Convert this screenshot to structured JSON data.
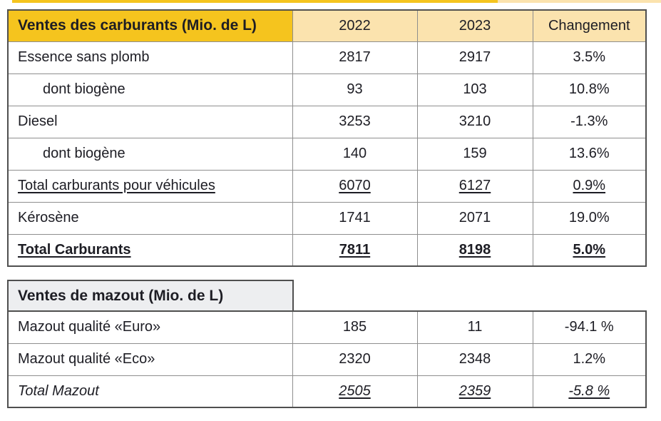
{
  "colors": {
    "gold_header": "#f5c41e",
    "cream_header": "#fbe3ae",
    "gray_header": "#edeef0",
    "outer_border": "#4f4f4f",
    "inner_border": "#8e8e8e",
    "text": "#1d1d24"
  },
  "fuel_table": {
    "title": "Ventes des carburants (Mio. de L)",
    "columns": [
      "2022",
      "2023",
      "Changement"
    ],
    "rows": [
      {
        "label": "Essence sans plomb",
        "v2022": "2817",
        "v2023": "2917",
        "change": "3.5%"
      },
      {
        "label": "dont biogène",
        "v2022": "93",
        "v2023": "103",
        "change": "10.8%"
      },
      {
        "label": "Diesel",
        "v2022": "3253",
        "v2023": "3210",
        "change": "-1.3%"
      },
      {
        "label": "dont biogène",
        "v2022": "140",
        "v2023": "159",
        "change": "13.6%"
      },
      {
        "label": "Total carburants pour véhicules",
        "v2022": "6070",
        "v2023": "6127",
        "change": "0.9%"
      },
      {
        "label": "Kérosène",
        "v2022": "1741",
        "v2023": "2071",
        "change": "19.0%"
      },
      {
        "label": "Total Carburants",
        "v2022": "7811",
        "v2023": "8198",
        "change": "5.0%"
      }
    ]
  },
  "mazout_table": {
    "title": "Ventes de mazout (Mio. de L)",
    "rows": [
      {
        "label": "Mazout qualité «Euro»",
        "v2022": "185",
        "v2023": "11",
        "change": "-94.1 %"
      },
      {
        "label": "Mazout qualité «Eco»",
        "v2022": "2320",
        "v2023": "2348",
        "change": "1.2%"
      },
      {
        "label": "Total Mazout",
        "v2022": "2505",
        "v2023": "2359",
        "change": "-5.8 %"
      }
    ]
  }
}
